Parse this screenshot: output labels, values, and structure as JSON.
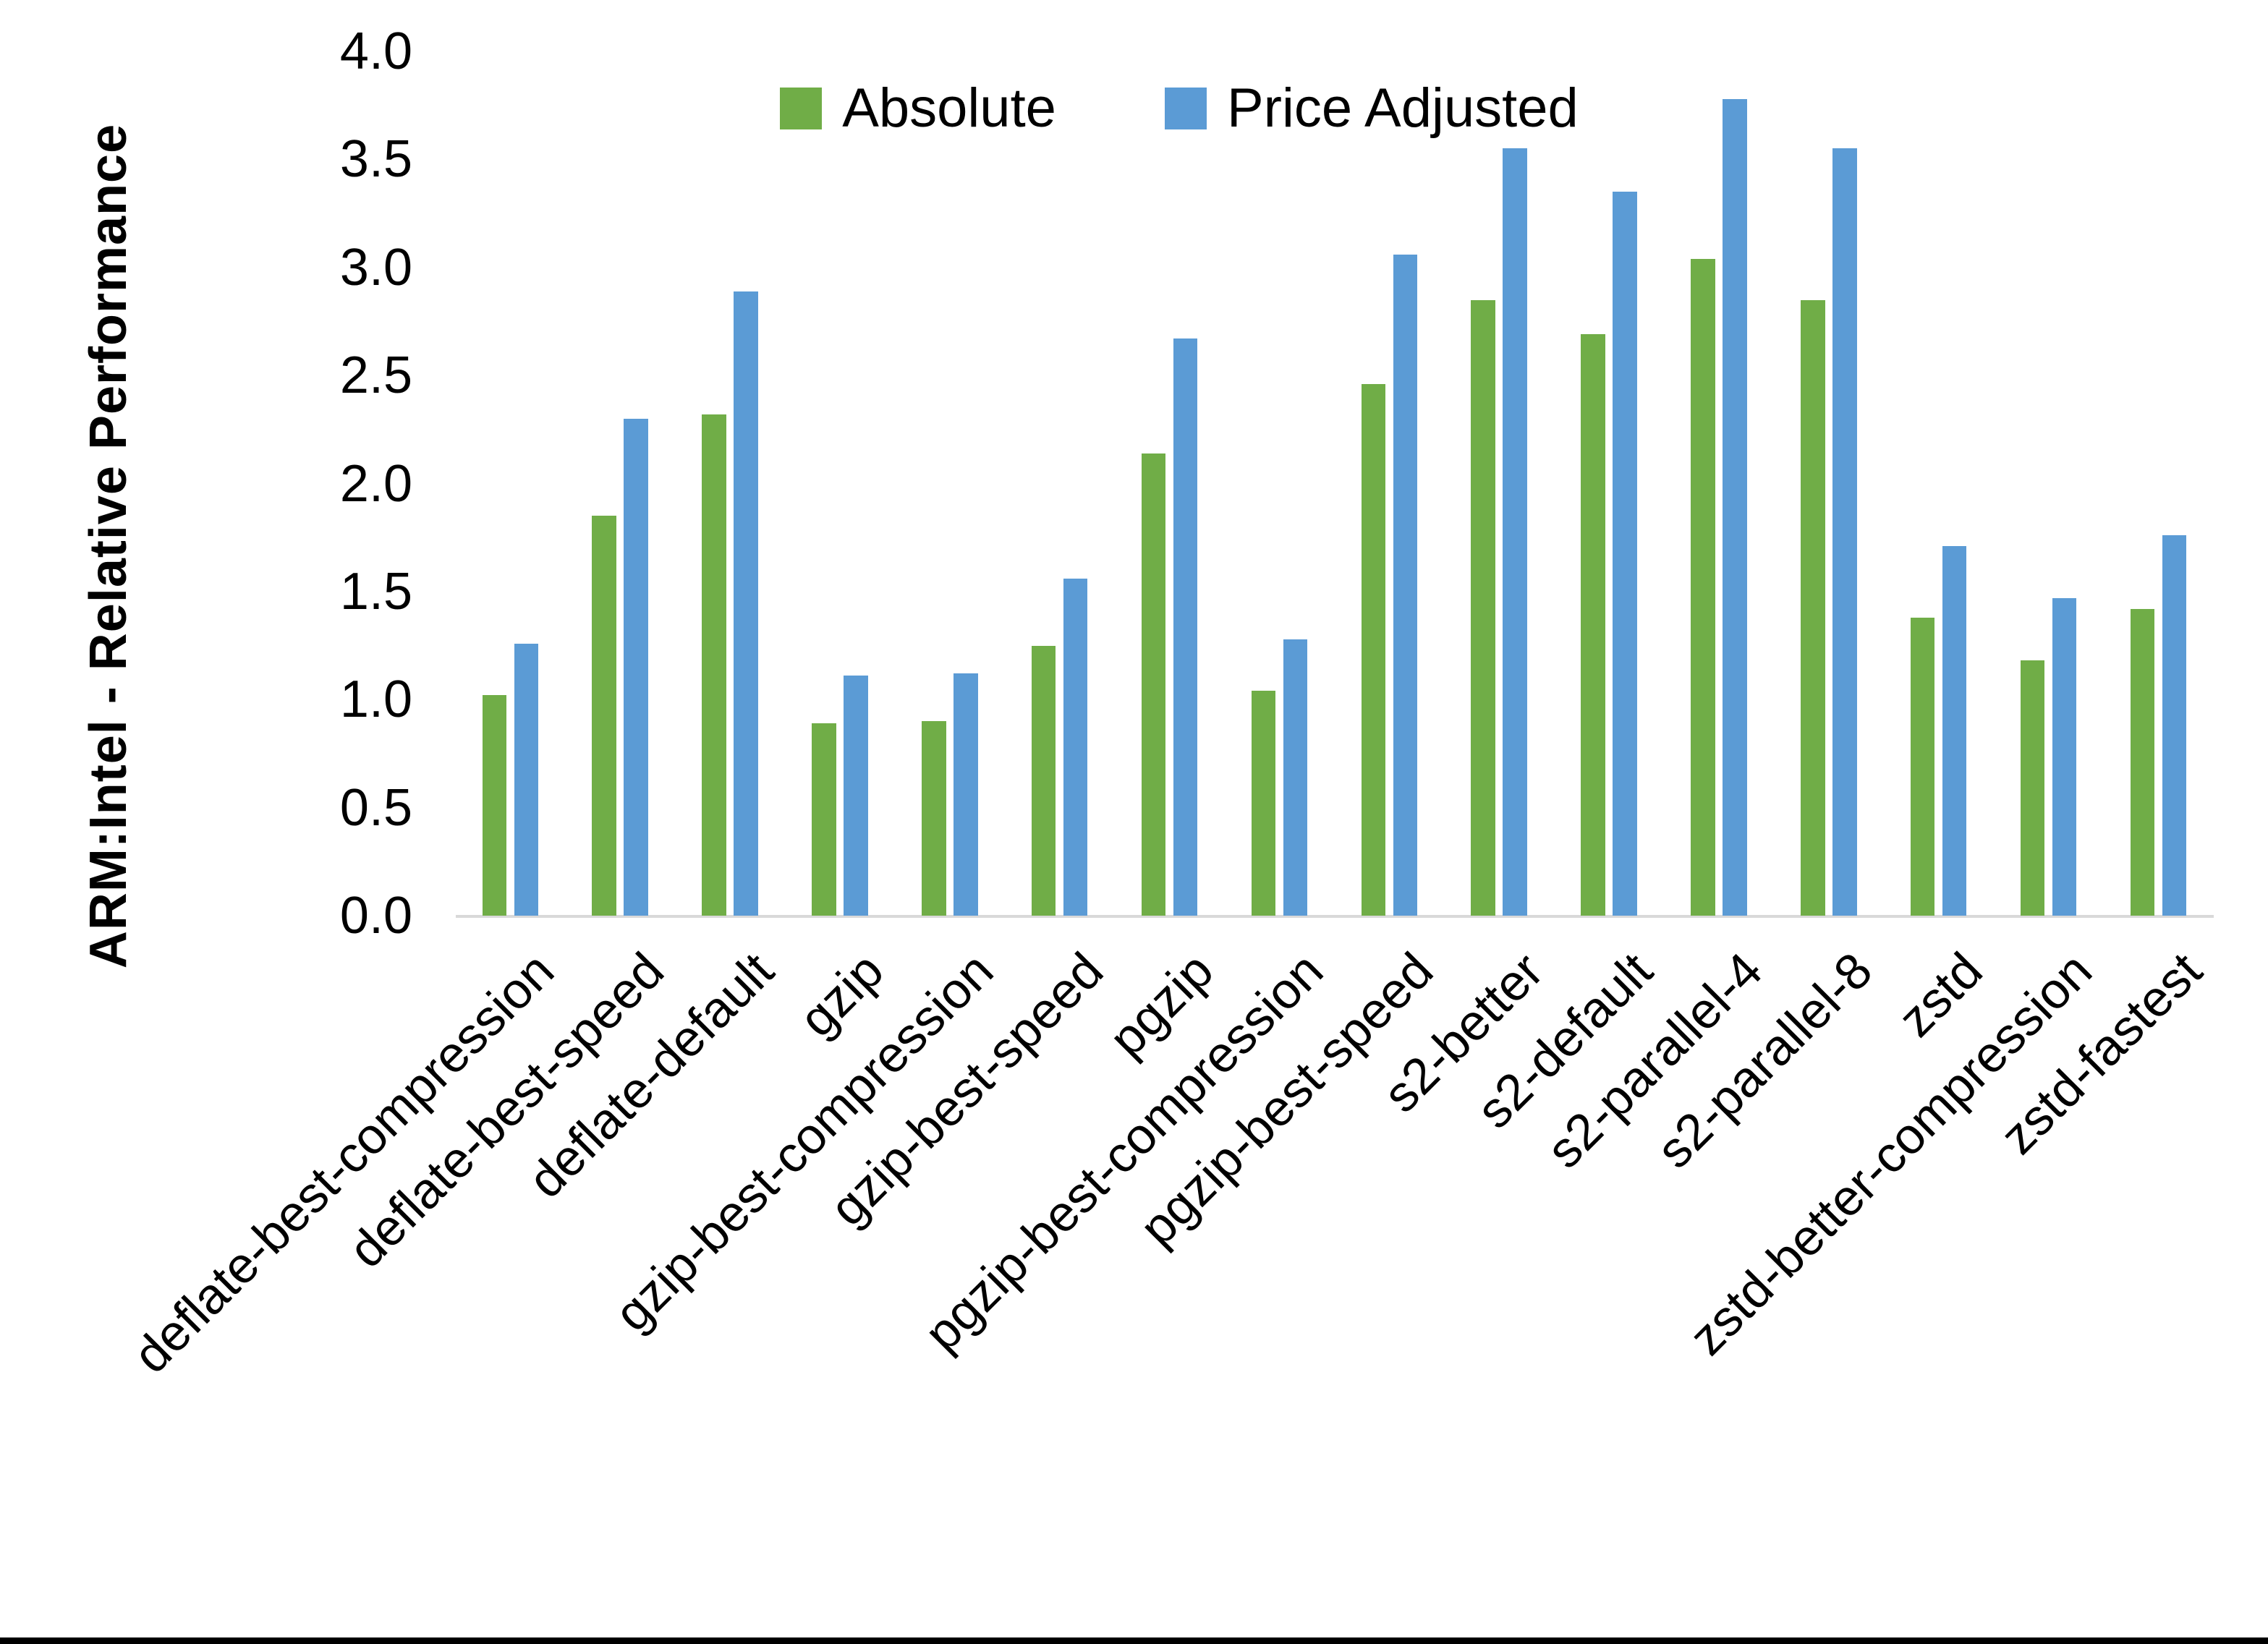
{
  "figure": {
    "background": "#ffffff",
    "bottom_border_color": "#000000",
    "axis_line_color": "#d9d9d9"
  },
  "y_axis": {
    "title": "ARM:Intel - Relative Performance",
    "tick_labels": [
      "0.0",
      "0.5",
      "1.0",
      "1.5",
      "2.0",
      "2.5",
      "3.0",
      "3.5",
      "4.0"
    ]
  },
  "chart_data": {
    "type": "bar",
    "title": "",
    "xlabel": "",
    "ylabel": "ARM:Intel - Relative Performance",
    "ylim": [
      0,
      4.0
    ],
    "ytick_step": 0.5,
    "grid": false,
    "legend_position": "top-center",
    "categories": [
      "deflate-best-compression",
      "deflate-best-speed",
      "deflate-default",
      "gzip",
      "gzip-best-compression",
      "gzip-best-speed",
      "pgzip",
      "pgzip-best-compression",
      "pgzip-best-speed",
      "s2-better",
      "s2-default",
      "s2-parallel-4",
      "s2-parallel-8",
      "zstd",
      "zstd-better-compression",
      "zstd-fastest"
    ],
    "series": [
      {
        "name": "Absolute",
        "color": "#70AD47",
        "values": [
          1.02,
          1.85,
          2.32,
          0.89,
          0.9,
          1.25,
          2.14,
          1.04,
          2.46,
          2.85,
          2.69,
          3.04,
          2.85,
          1.38,
          1.18,
          1.42
        ]
      },
      {
        "name": "Price Adjusted",
        "color": "#5B9BD5",
        "values": [
          1.26,
          2.3,
          2.89,
          1.11,
          1.12,
          1.56,
          2.67,
          1.28,
          3.06,
          3.55,
          3.35,
          3.78,
          3.55,
          1.71,
          1.47,
          1.76
        ]
      }
    ]
  }
}
